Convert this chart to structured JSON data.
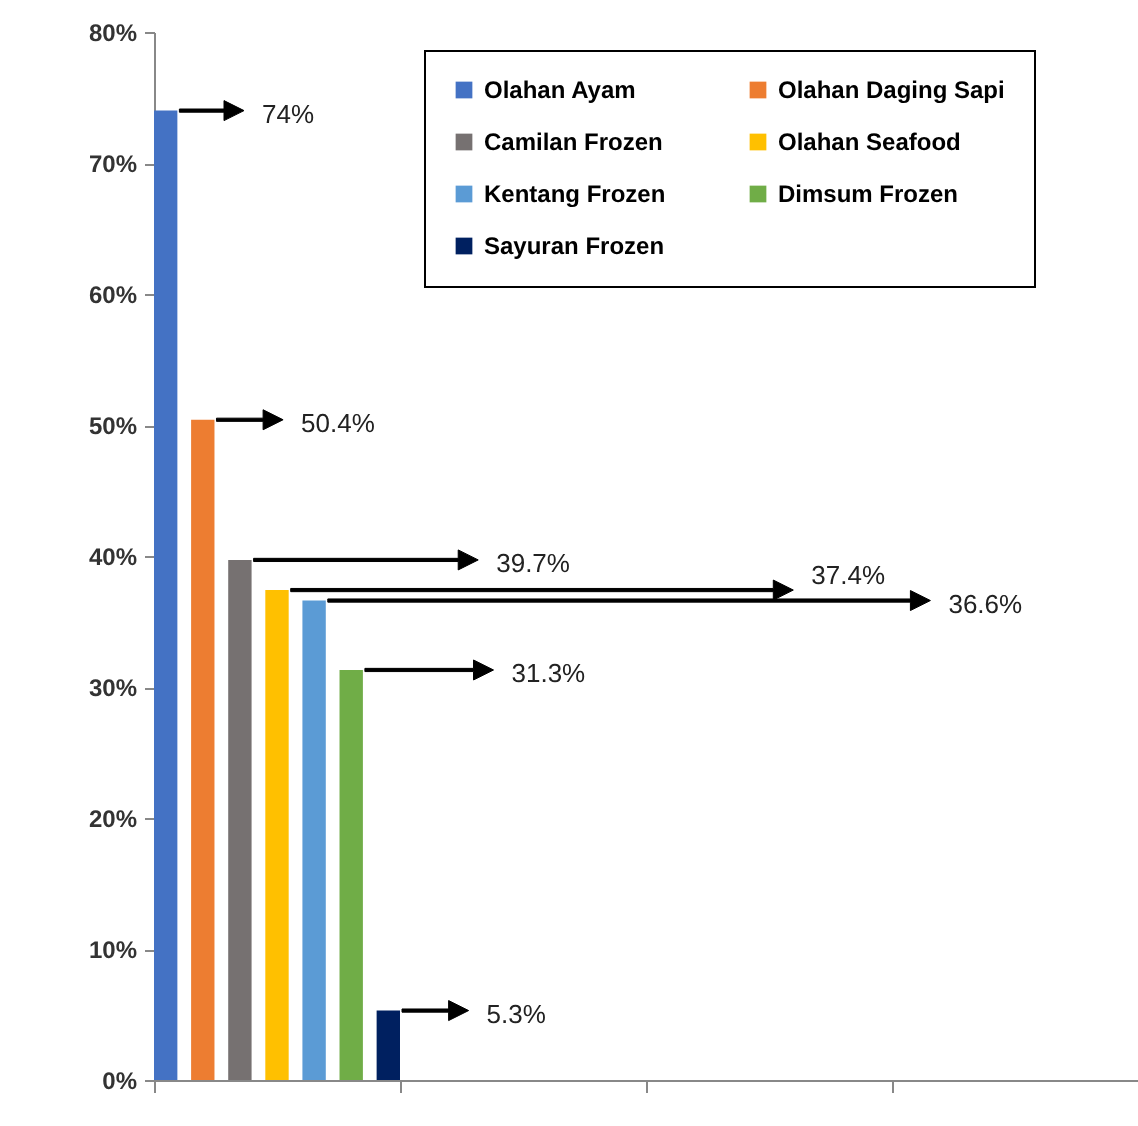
{
  "chart_data": {
    "type": "bar",
    "categories": [
      null,
      null,
      null,
      null
    ],
    "series": [
      {
        "name": "Olahan Ayam",
        "color": "#4472c4",
        "values": [
          74,
          null,
          null,
          null
        ]
      },
      {
        "name": "Olahan Daging Sapi",
        "color": "#ed7d31",
        "values": [
          50.4,
          null,
          null,
          null
        ]
      },
      {
        "name": "Camilan Frozen",
        "color": "#767171",
        "values": [
          39.7,
          null,
          null,
          null
        ]
      },
      {
        "name": "Olahan Seafood",
        "color": "#ffc000",
        "values": [
          37.4,
          null,
          null,
          null
        ]
      },
      {
        "name": "Kentang Frozen",
        "color": "#5b9bd5",
        "values": [
          36.6,
          null,
          null,
          null
        ]
      },
      {
        "name": "Dimsum Frozen",
        "color": "#70ad47",
        "values": [
          31.3,
          null,
          null,
          null
        ]
      },
      {
        "name": "Sayuran Frozen",
        "color": "#002060",
        "values": [
          5.3,
          null,
          null,
          null
        ]
      }
    ],
    "annotations": [
      "74%",
      "50.4%",
      "39.7%",
      "37.4%",
      "36.6%",
      "31.3%",
      "5.3%"
    ],
    "ylim": [
      0,
      80
    ],
    "yticks": [
      {
        "value": 0,
        "label": "0%"
      },
      {
        "value": 10,
        "label": "10%"
      },
      {
        "value": 20,
        "label": "20%"
      },
      {
        "value": 30,
        "label": "30%"
      },
      {
        "value": 40,
        "label": "40%"
      },
      {
        "value": 50,
        "label": "50%"
      },
      {
        "value": 60,
        "label": "60%"
      },
      {
        "value": 70,
        "label": "70%"
      },
      {
        "value": 80,
        "label": "80%"
      }
    ],
    "tick_labels": "y",
    "grid": false,
    "legend": "top right"
  }
}
